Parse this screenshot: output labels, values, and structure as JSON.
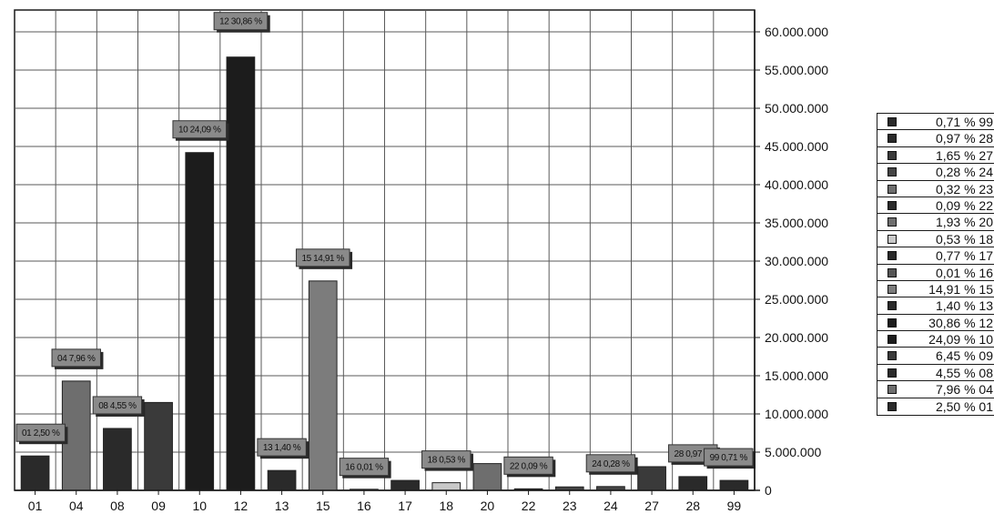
{
  "chart_data": {
    "type": "bar",
    "categories": [
      "01",
      "04",
      "08",
      "09",
      "10",
      "12",
      "13",
      "15",
      "16",
      "17",
      "18",
      "20",
      "22",
      "23",
      "24",
      "27",
      "28",
      "99"
    ],
    "values": [
      4500000,
      14300000,
      8100000,
      11500000,
      44200000,
      56700000,
      2600000,
      27400000,
      40000,
      1300000,
      1000000,
      3500000,
      200000,
      450000,
      500000,
      3100000,
      1800000,
      1300000
    ],
    "colors": [
      "#2a2a2a",
      "#6e6e6e",
      "#2a2a2a",
      "#3a3a3a",
      "#1c1c1c",
      "#1c1c1c",
      "#2a2a2a",
      "#7c7c7c",
      "#555555",
      "#2a2a2a",
      "#c8c8c8",
      "#6e6e6e",
      "#2a2a2a",
      "#444444",
      "#444444",
      "#3a3a3a",
      "#2a2a2a",
      "#2a2a2a"
    ],
    "ylim": [
      0,
      60000000
    ],
    "y_ticks": [
      "0",
      "5.000.000",
      "10.000.000",
      "15.000.000",
      "20.000.000",
      "25.000.000",
      "30.000.000",
      "35.000.000",
      "40.000.000",
      "45.000.000",
      "50.000.000",
      "55.000.000",
      "60.000.000"
    ],
    "y_axis_side": "right",
    "grid": true,
    "data_labels": [
      {
        "category": "01",
        "text": "01 2,50 %"
      },
      {
        "category": "04",
        "text": "04 7,96 %"
      },
      {
        "category": "08",
        "text": "08 4,55 %"
      },
      {
        "category": "10",
        "text": "10 24,09 %"
      },
      {
        "category": "12",
        "text": "12 30,86 %"
      },
      {
        "category": "13",
        "text": "13 1,40 %"
      },
      {
        "category": "15",
        "text": "15 14,91 %"
      },
      {
        "category": "16",
        "text": "16 0,01 %"
      },
      {
        "category": "18",
        "text": "18 0,53 %"
      },
      {
        "category": "22",
        "text": "22 0,09 %"
      },
      {
        "category": "24",
        "text": "24 0,28 %"
      },
      {
        "category": "28",
        "text": "28 0,97 %"
      },
      {
        "category": "99",
        "text": "99 0,71 %"
      }
    ],
    "legend_position": "right",
    "legend": [
      {
        "label": "0,71 % 99",
        "color": "#2a2a2a"
      },
      {
        "label": "0,97 % 28",
        "color": "#2a2a2a"
      },
      {
        "label": "1,65 % 27",
        "color": "#3a3a3a"
      },
      {
        "label": "0,28 % 24",
        "color": "#444444"
      },
      {
        "label": "0,32 % 23",
        "color": "#6e6e6e"
      },
      {
        "label": "0,09 % 22",
        "color": "#2a2a2a"
      },
      {
        "label": "1,93 % 20",
        "color": "#6e6e6e"
      },
      {
        "label": "0,53 % 18",
        "color": "#c8c8c8"
      },
      {
        "label": "0,77 % 17",
        "color": "#2a2a2a"
      },
      {
        "label": "0,01 % 16",
        "color": "#555555"
      },
      {
        "label": "14,91 % 15",
        "color": "#7c7c7c"
      },
      {
        "label": "1,40 % 13",
        "color": "#2a2a2a"
      },
      {
        "label": "30,86 % 12",
        "color": "#1c1c1c"
      },
      {
        "label": "24,09 % 10",
        "color": "#1c1c1c"
      },
      {
        "label": "6,45 % 09",
        "color": "#3a3a3a"
      },
      {
        "label": "4,55 % 08",
        "color": "#2a2a2a"
      },
      {
        "label": "7,96 % 04",
        "color": "#6e6e6e"
      },
      {
        "label": "2,50 % 01",
        "color": "#2a2a2a"
      }
    ]
  }
}
